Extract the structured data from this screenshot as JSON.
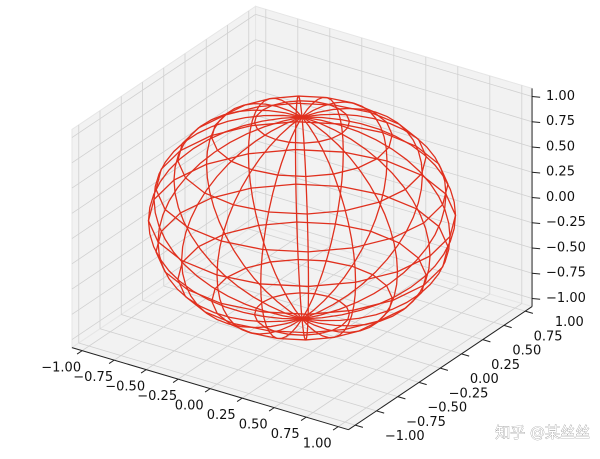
{
  "chart_data": {
    "type": "wireframe3d",
    "surface": "sphere",
    "radius": 1,
    "color": "#e0301e",
    "xlim": [
      -1,
      1
    ],
    "ylim": [
      -1,
      1
    ],
    "zlim": [
      -1,
      1
    ],
    "xticks": [
      {
        "value": -1,
        "label": "−1.00"
      },
      {
        "value": -0.75,
        "label": "−0.75"
      },
      {
        "value": -0.5,
        "label": "−0.50"
      },
      {
        "value": -0.25,
        "label": "−0.25"
      },
      {
        "value": 0,
        "label": "0.00"
      },
      {
        "value": 0.25,
        "label": "0.25"
      },
      {
        "value": 0.5,
        "label": "0.50"
      },
      {
        "value": 0.75,
        "label": "0.75"
      },
      {
        "value": 1,
        "label": "1.00"
      }
    ],
    "yticks": [
      {
        "value": -1,
        "label": "−1.00"
      },
      {
        "value": -0.75,
        "label": "−0.75"
      },
      {
        "value": -0.5,
        "label": "−0.50"
      },
      {
        "value": -0.25,
        "label": "−0.25"
      },
      {
        "value": 0,
        "label": "0.00"
      },
      {
        "value": 0.25,
        "label": "0.25"
      },
      {
        "value": 0.5,
        "label": "0.50"
      },
      {
        "value": 0.75,
        "label": "0.75"
      },
      {
        "value": 1,
        "label": "1.00"
      }
    ],
    "zticks": [
      {
        "value": -1,
        "label": "−1.00"
      },
      {
        "value": -0.75,
        "label": "−0.75"
      },
      {
        "value": -0.5,
        "label": "−0.50"
      },
      {
        "value": -0.25,
        "label": "−0.25"
      },
      {
        "value": 0,
        "label": "0.00"
      },
      {
        "value": 0.25,
        "label": "0.25"
      },
      {
        "value": 0.5,
        "label": "0.50"
      },
      {
        "value": 0.75,
        "label": "0.75"
      },
      {
        "value": 1,
        "label": "1.00"
      }
    ],
    "grid": true,
    "watermark": "知乎 @某丝丝"
  }
}
